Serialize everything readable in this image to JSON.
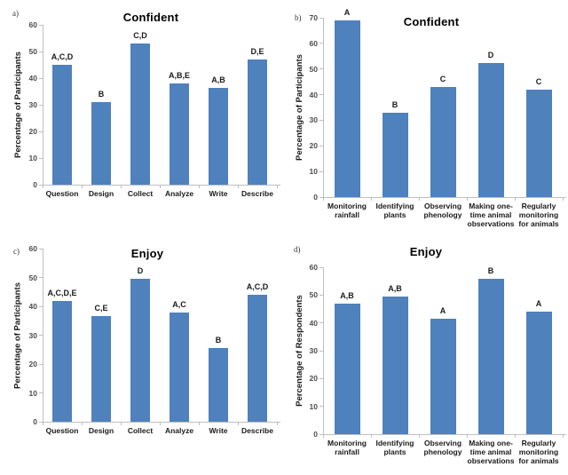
{
  "chart_data": [
    {
      "type": "bar",
      "panel_label": "a)",
      "title": "Confident",
      "ylabel": "Percentage of Participants",
      "ylim": [
        0,
        60
      ],
      "ytick_step": 10,
      "grid": false,
      "legend": "none",
      "categories": [
        "Question",
        "Design",
        "Collect",
        "Analyze",
        "Write",
        "Describe"
      ],
      "category_lines": [
        [
          "Question"
        ],
        [
          "Design"
        ],
        [
          "Collect"
        ],
        [
          "Analyze"
        ],
        [
          "Write"
        ],
        [
          "Describe"
        ]
      ],
      "values": [
        45,
        31,
        53,
        38,
        36.5,
        47
      ],
      "bar_labels": [
        "A,C,D",
        "B",
        "C,D",
        "A,B,E",
        "A,B",
        "D,E"
      ],
      "bar_color": "#4F81BD"
    },
    {
      "type": "bar",
      "panel_label": "b)",
      "title": "Confident",
      "ylabel": "Percentage of Participants",
      "ylim": [
        0,
        70
      ],
      "ytick_step": 10,
      "grid": false,
      "legend": "none",
      "categories": [
        "Monitoring rainfall",
        "Identifying plants",
        "Observing phenology",
        "Making one-time animal observations",
        "Regularly monitoring for animals"
      ],
      "category_lines": [
        [
          "Monitoring",
          "rainfall"
        ],
        [
          "Identifying",
          "plants"
        ],
        [
          "Observing",
          "phenology"
        ],
        [
          "Making one-",
          "time animal",
          "observations"
        ],
        [
          "Regularly",
          "monitoring",
          "for animals"
        ]
      ],
      "values": [
        69,
        33,
        43,
        52.5,
        42
      ],
      "bar_labels": [
        "A",
        "B",
        "C",
        "D",
        "C"
      ],
      "bar_color": "#4F81BD"
    },
    {
      "type": "bar",
      "panel_label": "c)",
      "title": "Enjoy",
      "ylabel": "Percentage of Participants",
      "ylim": [
        0,
        60
      ],
      "ytick_step": 10,
      "grid": false,
      "legend": "none",
      "categories": [
        "Question",
        "Design",
        "Collect",
        "Analyze",
        "Write",
        "Describe"
      ],
      "category_lines": [
        [
          "Question"
        ],
        [
          "Design"
        ],
        [
          "Collect"
        ],
        [
          "Analyze"
        ],
        [
          "Write"
        ],
        [
          "Describe"
        ]
      ],
      "values": [
        42,
        36.5,
        49.5,
        38,
        25.5,
        44
      ],
      "bar_labels": [
        "A,C,D,E",
        "C,E",
        "D",
        "A,C",
        "B",
        "A,C,D"
      ],
      "bar_color": "#4F81BD"
    },
    {
      "type": "bar",
      "panel_label": "d)",
      "title": "Enjoy",
      "ylabel": "Percentage of Respondents",
      "ylim": [
        0,
        60
      ],
      "ytick_step": 10,
      "grid": false,
      "legend": "none",
      "categories": [
        "Monitoring rainfall",
        "Identifying plants",
        "Observing phenology",
        "Making one-time animal observations",
        "Regularly monitoring for animals"
      ],
      "category_lines": [
        [
          "Monitoring",
          "rainfall"
        ],
        [
          "Identifying",
          "plants"
        ],
        [
          "Observing",
          "phenology"
        ],
        [
          "Making one-",
          "time animal",
          "observations"
        ],
        [
          "Regularly",
          "monitoring",
          "for animals"
        ]
      ],
      "values": [
        47,
        49.5,
        41.5,
        56,
        44
      ],
      "bar_labels": [
        "A,B",
        "A,B",
        "A",
        "B",
        "A"
      ],
      "bar_color": "#4F81BD"
    }
  ]
}
